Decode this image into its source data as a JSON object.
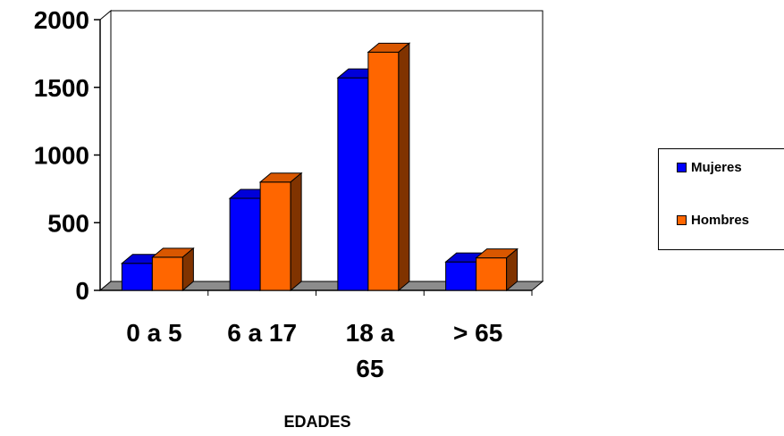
{
  "chart_data": {
    "type": "bar",
    "categories": [
      "0 a 5",
      "6 a 17",
      "18 a 65",
      "> 65"
    ],
    "category_lines": [
      [
        "0 a 5"
      ],
      [
        "6 a 17"
      ],
      [
        "18 a",
        "65"
      ],
      [
        "> 65"
      ]
    ],
    "series": [
      {
        "name": "Mujeres",
        "values": [
          200,
          680,
          1570,
          210
        ],
        "color": "#0000FF"
      },
      {
        "name": "Hombres",
        "values": [
          245,
          800,
          1760,
          240
        ],
        "color": "#FF6600"
      }
    ],
    "xlabel": "EDADES",
    "ylabel": "",
    "ylim": [
      0,
      2000
    ],
    "yticks": [
      "0",
      "500",
      "1000",
      "1500",
      "2000"
    ],
    "grid": false,
    "legend_position": "right",
    "three_d": true
  }
}
